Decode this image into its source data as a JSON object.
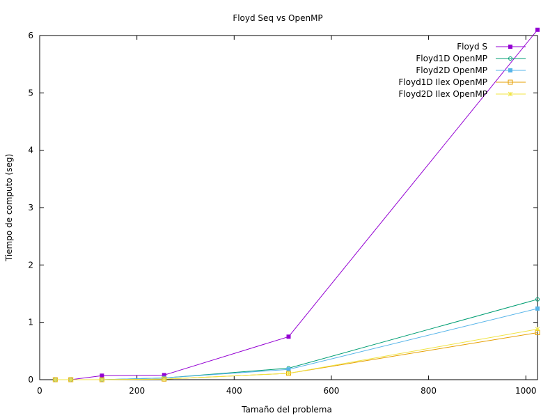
{
  "chart_data": {
    "type": "line",
    "title": "Floyd Seq vs OpenMP",
    "xlabel": "Tamaño del problema",
    "ylabel": "Tiempo de computo (seg)",
    "xlim": [
      0,
      1024
    ],
    "ylim": [
      0,
      6
    ],
    "xticks": [
      0,
      200,
      400,
      600,
      800,
      1000
    ],
    "yticks": [
      0,
      1,
      2,
      3,
      4,
      5,
      6
    ],
    "grid": false,
    "legend_position": "top-right",
    "x": [
      32,
      64,
      128,
      256,
      512,
      1024
    ],
    "series": [
      {
        "name": "Floyd S",
        "values": [
          0.0,
          0.0,
          0.07,
          0.08,
          0.75,
          6.1
        ],
        "color": "#9400d3",
        "marker": "filled-square-cross"
      },
      {
        "name": "Floyd1D OpenMP",
        "values": [
          0.0,
          0.0,
          0.0,
          0.03,
          0.2,
          1.4
        ],
        "color": "#009e73",
        "marker": "open-circle"
      },
      {
        "name": "Floyd2D OpenMP",
        "values": [
          0.0,
          0.0,
          0.0,
          0.03,
          0.18,
          1.24
        ],
        "color": "#56b4e9",
        "marker": "filled-square"
      },
      {
        "name": "Floyd1D Ilex OpenMP",
        "values": [
          0.0,
          0.0,
          0.0,
          0.01,
          0.11,
          0.82
        ],
        "color": "#e69f00",
        "marker": "open-square"
      },
      {
        "name": "Floyd2D Ilex OpenMP",
        "values": [
          0.0,
          0.0,
          0.0,
          0.01,
          0.11,
          0.88
        ],
        "color": "#f0e442",
        "marker": "star"
      }
    ]
  }
}
